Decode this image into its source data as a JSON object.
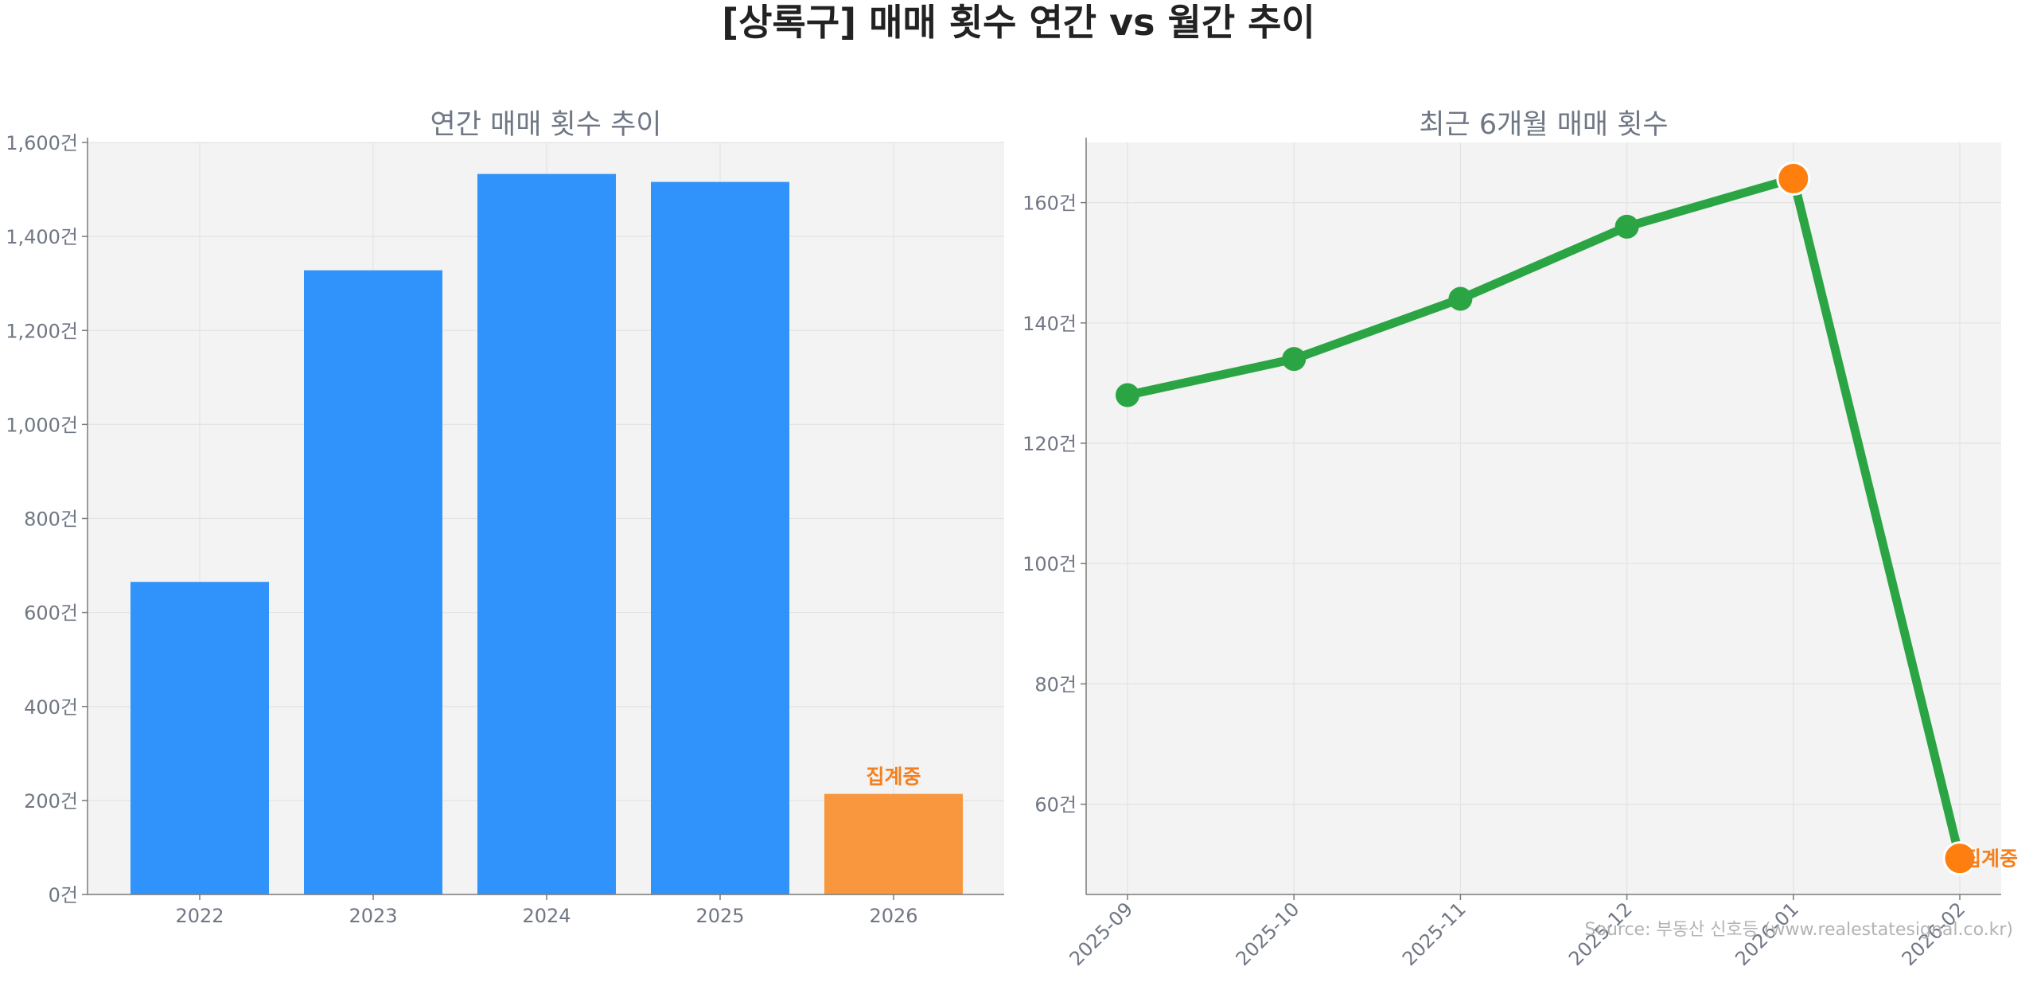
{
  "title": "[상록구] 매매 횟수 연간 vs 월간 추이",
  "source": "Source: 부동산 신호등 (www.realestatesignal.co.kr)",
  "colors": {
    "bar": "#3093fb",
    "bar_partial": "#f8973e",
    "line": "#2ba543",
    "highlight": "#ff7f0e",
    "note": "#f57f1c",
    "panel_bg": "#f3f3f3",
    "grid": "#e3e3e3"
  },
  "chart_data": [
    {
      "type": "bar",
      "title": "연간 매매 횟수 추이",
      "categories": [
        "2022",
        "2023",
        "2024",
        "2025",
        "2026"
      ],
      "values": [
        665,
        1328,
        1533,
        1516,
        214
      ],
      "partial": [
        false,
        false,
        false,
        false,
        true
      ],
      "annotation": {
        "category": "2026",
        "text": "집계중"
      },
      "ylim": [
        0,
        1600
      ],
      "yticks": [
        0,
        200,
        400,
        600,
        800,
        1000,
        1200,
        1400,
        1600
      ],
      "ytick_labels": [
        "0건",
        "200건",
        "400건",
        "600건",
        "800건",
        "1,000건",
        "1,200건",
        "1,400건",
        "1,600건"
      ],
      "xlabel": "",
      "ylabel": "",
      "grid": true
    },
    {
      "type": "line",
      "title": "최근 6개월 매매 횟수",
      "x": [
        "2025-09",
        "2025-10",
        "2025-11",
        "2025-12",
        "2026-01",
        "2026-02"
      ],
      "values": [
        128,
        134,
        144,
        156,
        164,
        51
      ],
      "highlight": [
        false,
        false,
        false,
        false,
        true,
        true
      ],
      "annotation": {
        "x": "2026-02",
        "text": "집계중"
      },
      "ylim": [
        45,
        170
      ],
      "yticks": [
        60,
        80,
        100,
        120,
        140,
        160
      ],
      "ytick_labels": [
        "60건",
        "80건",
        "100건",
        "120건",
        "140건",
        "160건"
      ],
      "xlabel": "",
      "ylabel": "",
      "grid": true
    }
  ]
}
